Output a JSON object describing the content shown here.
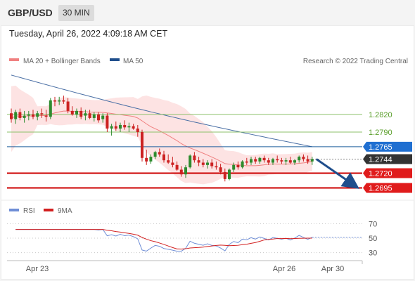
{
  "header": {
    "symbol": "GBP/USD",
    "timeframe": "30 MIN"
  },
  "datetime": "Tuesday, April 26, 2022 4:09:18 AM CET",
  "legend": {
    "ma20_label": "MA 20 + Bollinger Bands",
    "ma50_label": "MA 50",
    "copyright": "Research © 2022 Trading Central",
    "rsi_label": "RSI",
    "ma9_label": "9MA"
  },
  "colors": {
    "ma20": "#f08080",
    "band": "#fde3e3",
    "ma50": "#4a6fa5",
    "up": "#2e8b2e",
    "down": "#cc2222",
    "target": "#cc0000",
    "pivot": "#1f5f9e",
    "resistance": "#8cc06a",
    "price_tag": "#333333",
    "rsi": "#6f8ed6",
    "rsi_ma": "#d21f1f"
  },
  "levels": [
    {
      "label": "1.2820",
      "kind": "resistance"
    },
    {
      "label": "1.2790",
      "kind": "resistance"
    },
    {
      "label": "1.2765",
      "kind": "pivot"
    },
    {
      "label": "1.2744",
      "kind": "last_price"
    },
    {
      "label": "1.2720",
      "kind": "target"
    },
    {
      "label": "1.2695",
      "kind": "target"
    }
  ],
  "rsi_axis": [
    "70",
    "50",
    "30"
  ],
  "x_axis": [
    "Apr 23",
    "Apr 26",
    "Apr 30"
  ],
  "chart_data": {
    "type": "candlestick",
    "price_axis": {
      "visible_labels": [
        1.282,
        1.279,
        1.2765,
        1.2744,
        1.272,
        1.2695
      ],
      "ylim": [
        1.268,
        1.29
      ]
    },
    "candles": [
      [
        1.2822,
        1.283,
        1.2806,
        1.2812
      ],
      [
        1.2812,
        1.2828,
        1.2804,
        1.2824
      ],
      [
        1.2824,
        1.283,
        1.281,
        1.2814
      ],
      [
        1.2814,
        1.2826,
        1.2806,
        1.2818
      ],
      [
        1.2818,
        1.2826,
        1.281,
        1.282
      ],
      [
        1.282,
        1.2828,
        1.2812,
        1.2816
      ],
      [
        1.2816,
        1.2826,
        1.281,
        1.2822
      ],
      [
        1.2822,
        1.283,
        1.2814,
        1.282
      ],
      [
        1.2818,
        1.2828,
        1.2808,
        1.2816
      ],
      [
        1.2816,
        1.2848,
        1.2812,
        1.2844
      ],
      [
        1.2844,
        1.285,
        1.2834,
        1.2842
      ],
      [
        1.2842,
        1.285,
        1.2836,
        1.2844
      ],
      [
        1.2844,
        1.2852,
        1.2838,
        1.2842
      ],
      [
        1.2842,
        1.2848,
        1.2822,
        1.2826
      ],
      [
        1.2826,
        1.2834,
        1.2818,
        1.282
      ],
      [
        1.282,
        1.283,
        1.2814,
        1.2826
      ],
      [
        1.2826,
        1.2832,
        1.2812,
        1.2816
      ],
      [
        1.2818,
        1.2828,
        1.281,
        1.2822
      ],
      [
        1.2822,
        1.2828,
        1.2812,
        1.2814
      ],
      [
        1.2814,
        1.2824,
        1.2808,
        1.282
      ],
      [
        1.282,
        1.2824,
        1.2806,
        1.281
      ],
      [
        1.2812,
        1.2822,
        1.2806,
        1.2818
      ],
      [
        1.2818,
        1.2822,
        1.279,
        1.2796
      ],
      [
        1.2796,
        1.2804,
        1.2784,
        1.28
      ],
      [
        1.28,
        1.2808,
        1.2792,
        1.2796
      ],
      [
        1.2796,
        1.2806,
        1.279,
        1.2802
      ],
      [
        1.2802,
        1.281,
        1.2794,
        1.2798
      ],
      [
        1.2798,
        1.2806,
        1.279,
        1.28
      ],
      [
        1.28,
        1.2804,
        1.2794,
        1.2796
      ],
      [
        1.2796,
        1.2802,
        1.2782,
        1.279
      ],
      [
        1.279,
        1.2794,
        1.274,
        1.2746
      ],
      [
        1.2746,
        1.276,
        1.2734,
        1.274
      ],
      [
        1.274,
        1.2752,
        1.2736,
        1.2748
      ],
      [
        1.2748,
        1.2758,
        1.2744,
        1.2756
      ],
      [
        1.2756,
        1.2762,
        1.2748,
        1.2752
      ],
      [
        1.2752,
        1.2758,
        1.2738,
        1.2742
      ],
      [
        1.2742,
        1.2752,
        1.2736,
        1.2738
      ],
      [
        1.2738,
        1.2748,
        1.273,
        1.2734
      ],
      [
        1.2734,
        1.274,
        1.2724,
        1.2726
      ],
      [
        1.2726,
        1.2732,
        1.2714,
        1.2718
      ],
      [
        1.2718,
        1.2734,
        1.2712,
        1.273
      ],
      [
        1.273,
        1.2752,
        1.2728,
        1.275
      ],
      [
        1.275,
        1.2756,
        1.2738,
        1.2742
      ],
      [
        1.2742,
        1.2748,
        1.2732,
        1.2738
      ],
      [
        1.2738,
        1.2744,
        1.273,
        1.2734
      ],
      [
        1.2734,
        1.2742,
        1.2728,
        1.2738
      ],
      [
        1.2738,
        1.2744,
        1.2728,
        1.2732
      ],
      [
        1.2732,
        1.274,
        1.2726,
        1.273
      ],
      [
        1.273,
        1.2736,
        1.2718,
        1.2722
      ],
      [
        1.2722,
        1.2728,
        1.2706,
        1.271
      ],
      [
        1.271,
        1.2728,
        1.2708,
        1.2726
      ],
      [
        1.2726,
        1.2738,
        1.2722,
        1.2734
      ],
      [
        1.2734,
        1.274,
        1.2726,
        1.273
      ],
      [
        1.273,
        1.2742,
        1.2728,
        1.274
      ],
      [
        1.274,
        1.2746,
        1.2734,
        1.2738
      ],
      [
        1.2738,
        1.2748,
        1.2734,
        1.2744
      ],
      [
        1.2744,
        1.2748,
        1.2736,
        1.274
      ],
      [
        1.274,
        1.2748,
        1.2736,
        1.2746
      ],
      [
        1.2746,
        1.275,
        1.2738,
        1.2742
      ],
      [
        1.2742,
        1.2746,
        1.2734,
        1.2738
      ],
      [
        1.2738,
        1.2746,
        1.2734,
        1.2744
      ],
      [
        1.2744,
        1.275,
        1.2738,
        1.2742
      ],
      [
        1.2742,
        1.2746,
        1.2736,
        1.274
      ],
      [
        1.274,
        1.2746,
        1.2734,
        1.2742
      ],
      [
        1.2742,
        1.2748,
        1.2736,
        1.2738
      ],
      [
        1.2738,
        1.2744,
        1.2734,
        1.2742
      ],
      [
        1.2742,
        1.275,
        1.2738,
        1.2748
      ],
      [
        1.2748,
        1.2752,
        1.274,
        1.2744
      ],
      [
        1.2744,
        1.275,
        1.2736,
        1.274
      ],
      [
        1.274,
        1.2748,
        1.2734,
        1.2744
      ]
    ],
    "rsi_ylim": [
      20,
      80
    ]
  }
}
